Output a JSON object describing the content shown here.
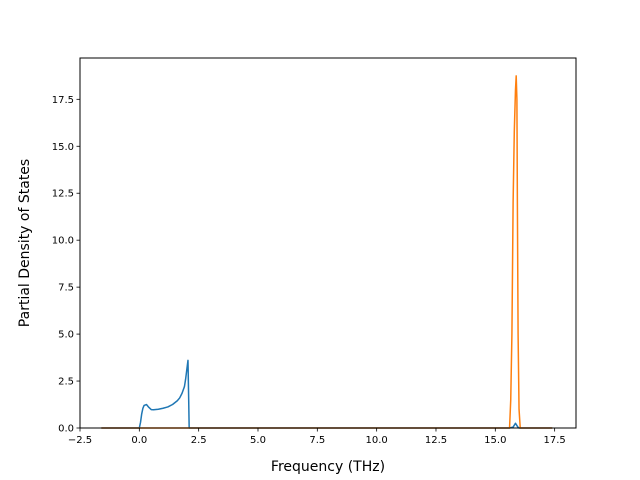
{
  "chart_data": {
    "type": "line",
    "title": "",
    "xlabel": "Frequency (THz)",
    "ylabel": "Partial Density of States",
    "xlim": [
      -2.5,
      18.4
    ],
    "ylim": [
      0.0,
      19.7
    ],
    "x_ticks": [
      -2.5,
      0.0,
      2.5,
      5.0,
      7.5,
      10.0,
      12.5,
      15.0,
      17.5
    ],
    "x_tick_labels": [
      "−2.5",
      "0.0",
      "2.5",
      "5.0",
      "7.5",
      "10.0",
      "12.5",
      "15.0",
      "17.5"
    ],
    "y_ticks": [
      0.0,
      2.5,
      5.0,
      7.5,
      10.0,
      12.5,
      15.0,
      17.5
    ],
    "y_tick_labels": [
      "0.0",
      "2.5",
      "5.0",
      "7.5",
      "10.0",
      "12.5",
      "15.0",
      "17.5"
    ],
    "grid": false,
    "legend": "none",
    "series": [
      {
        "color": "#1f77b4",
        "points": [
          [
            -1.6,
            0.0
          ],
          [
            0.0,
            0.0
          ],
          [
            0.05,
            0.3
          ],
          [
            0.1,
            0.75
          ],
          [
            0.15,
            1.05
          ],
          [
            0.2,
            1.2
          ],
          [
            0.3,
            1.25
          ],
          [
            0.4,
            1.1
          ],
          [
            0.5,
            0.98
          ],
          [
            0.6,
            0.97
          ],
          [
            0.8,
            1.0
          ],
          [
            1.0,
            1.05
          ],
          [
            1.2,
            1.12
          ],
          [
            1.4,
            1.25
          ],
          [
            1.6,
            1.45
          ],
          [
            1.7,
            1.6
          ],
          [
            1.8,
            1.85
          ],
          [
            1.9,
            2.2
          ],
          [
            1.95,
            2.6
          ],
          [
            2.0,
            3.1
          ],
          [
            2.05,
            3.6
          ],
          [
            2.08,
            1.5
          ],
          [
            2.1,
            0.0
          ],
          [
            15.6,
            0.0
          ],
          [
            15.75,
            0.05
          ],
          [
            15.85,
            0.25
          ],
          [
            15.95,
            0.05
          ],
          [
            16.0,
            0.0
          ],
          [
            17.4,
            0.0
          ]
        ]
      },
      {
        "color": "#ff7f0e",
        "points": [
          [
            -1.6,
            0.0
          ],
          [
            15.6,
            0.0
          ],
          [
            15.65,
            1.5
          ],
          [
            15.7,
            5.0
          ],
          [
            15.75,
            12.0
          ],
          [
            15.8,
            15.8
          ],
          [
            15.85,
            18.0
          ],
          [
            15.88,
            18.75
          ],
          [
            15.91,
            17.5
          ],
          [
            15.93,
            12.0
          ],
          [
            15.96,
            5.0
          ],
          [
            16.0,
            1.0
          ],
          [
            16.05,
            0.0
          ],
          [
            17.4,
            0.0
          ]
        ]
      }
    ]
  }
}
